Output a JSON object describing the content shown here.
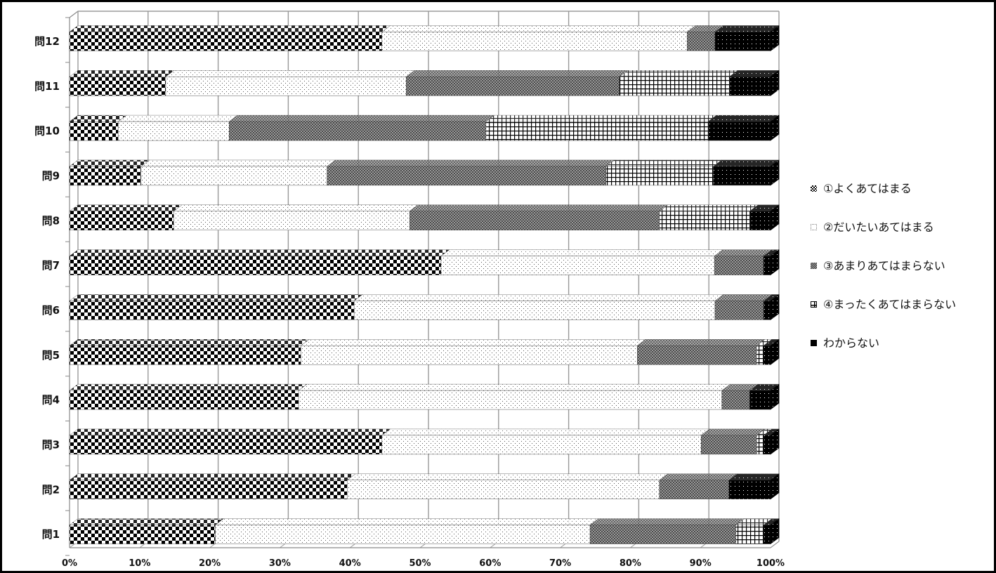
{
  "chart_data": {
    "type": "bar",
    "orientation": "horizontal",
    "stacked": "100%",
    "categories": [
      "問1",
      "問2",
      "問3",
      "問4",
      "問5",
      "問6",
      "問7",
      "問8",
      "問9",
      "問10",
      "問11",
      "問12"
    ],
    "series": [
      {
        "name": "①よくあてはまる",
        "pattern": "checker",
        "values": [
          21,
          40,
          45,
          33,
          33,
          41,
          53,
          15,
          10,
          7,
          14,
          45
        ]
      },
      {
        "name": "②だいたいあてはまる",
        "pattern": "dots",
        "values": [
          54,
          45,
          46,
          61,
          48,
          52,
          39,
          34,
          26,
          16,
          35,
          44
        ]
      },
      {
        "name": "③あまりあてはまらない",
        "pattern": "dense",
        "values": [
          21,
          10,
          8,
          4,
          17,
          7,
          7,
          36,
          39,
          37,
          31,
          4
        ]
      },
      {
        "name": "④まったくあてはまらない",
        "pattern": "grid",
        "values": [
          4,
          0,
          1,
          0,
          1,
          0,
          0,
          13,
          15,
          32,
          16,
          0
        ]
      },
      {
        "name": "わからない",
        "pattern": "solid",
        "values": [
          1,
          6,
          1,
          3,
          1,
          1,
          1,
          3,
          8,
          9,
          6,
          8
        ]
      }
    ],
    "x_ticks": [
      "0%",
      "10%",
      "20%",
      "30%",
      "40%",
      "50%",
      "60%",
      "70%",
      "80%",
      "90%",
      "100%"
    ],
    "xlim": [
      0,
      100
    ],
    "grid": true,
    "legend_position": "right",
    "colors": {
      "grid": "#999999",
      "axis": "#888888",
      "dark": "#000000",
      "light": "#ffffff"
    }
  }
}
